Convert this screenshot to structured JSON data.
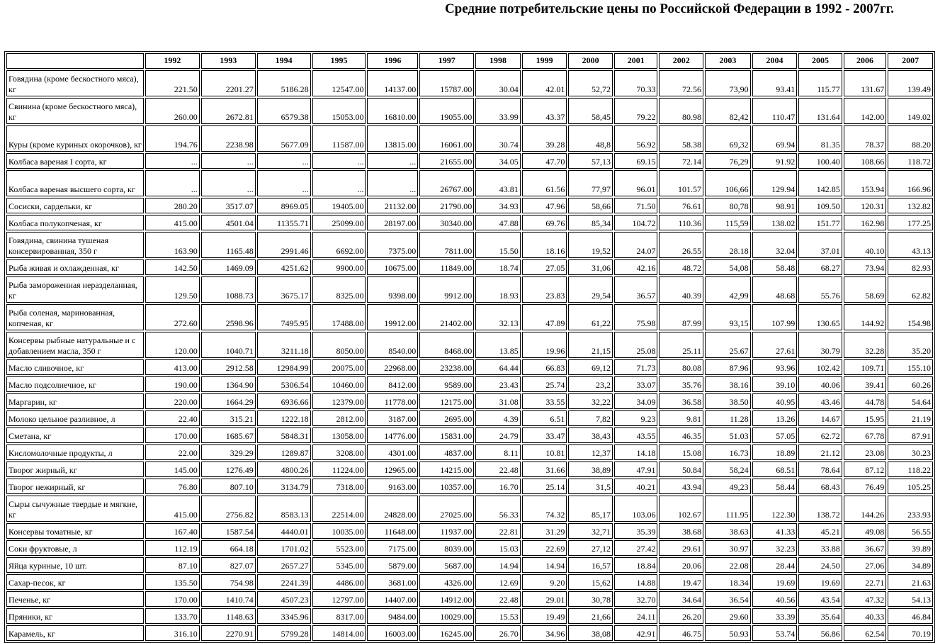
{
  "header": {
    "title": "Средние потребительские цены по Российской Федерации в 1992 - 2007гг."
  },
  "table": {
    "years": [
      "1992",
      "1993",
      "1994",
      "1995",
      "1996",
      "1997",
      "1998",
      "1999",
      "2000",
      "2001",
      "2002",
      "2003",
      "2004",
      "2005",
      "2006",
      "2007"
    ],
    "rows": [
      {
        "label": "Говядина (кроме бескостного мяса), кг",
        "cells": [
          "221.50",
          "2201.27",
          "5186.28",
          "12547.00",
          "14137.00",
          "15787.00",
          "30.04",
          "42.01",
          "52,72",
          "70.33",
          "72.56",
          "73,90",
          "93.41",
          "115.77",
          "131.67",
          "139.49"
        ]
      },
      {
        "label": "Свинина (кроме бескостного мяса), кг",
        "cells": [
          "260.00",
          "2672.81",
          "6579.38",
          "15053.00",
          "16810.00",
          "19055.00",
          "33.99",
          "43.37",
          "58,45",
          "79.22",
          "80.98",
          "82,42",
          "110.47",
          "131.64",
          "142.00",
          "149.02"
        ]
      },
      {
        "label": "Куры (кроме куриных окорочков), кг",
        "cells": [
          "194.76",
          "2238.98",
          "5677.09",
          "11587.00",
          "13815.00",
          "16061.00",
          "30.74",
          "39.28",
          "48,8",
          "56.92",
          "58.38",
          "69,32",
          "69.94",
          "81.35",
          "78.37",
          "88.20"
        ]
      },
      {
        "label": "Колбаса вареная I сорта, кг",
        "cells": [
          "...",
          "...",
          "...",
          "...",
          "...",
          "21655.00",
          "34.05",
          "47.70",
          "57,13",
          "69.15",
          "72.14",
          "76,29",
          "91.92",
          "100.40",
          "108.66",
          "118.72"
        ]
      },
      {
        "label": "Колбаса вареная высшего сорта, кг",
        "cells": [
          "...",
          "...",
          "...",
          "...",
          "...",
          "26767.00",
          "43.81",
          "61.56",
          "77,97",
          "96.01",
          "101.57",
          "106,66",
          "129.94",
          "142.85",
          "153.94",
          "166.96"
        ]
      },
      {
        "label": "Сосиски, сардельки, кг",
        "cells": [
          "280.20",
          "3517.07",
          "8969.05",
          "19405.00",
          "21132.00",
          "21790.00",
          "34.93",
          "47.96",
          "58,66",
          "71.50",
          "76.61",
          "80,78",
          "98.91",
          "109.50",
          "120.31",
          "132.82"
        ]
      },
      {
        "label": "Колбаса полукопченая, кг",
        "cells": [
          "415.00",
          "4501.04",
          "11355.71",
          "25099.00",
          "28197.00",
          "30340.00",
          "47.88",
          "69.76",
          "85,34",
          "104.72",
          "110.36",
          "115,59",
          "138.02",
          "151.77",
          "162.98",
          "177.25"
        ]
      },
      {
        "label": "Говядина, свинина тушеная консервированная, 350 г",
        "cells": [
          "163.90",
          "1165.48",
          "2991.46",
          "6692.00",
          "7375.00",
          "7811.00",
          "15.50",
          "18.16",
          "19,52",
          "24.07",
          "26.55",
          "28.18",
          "32.04",
          "37.01",
          "40.10",
          "43.13"
        ]
      },
      {
        "label": "Рыба живая и охлажденная, кг",
        "cells": [
          "142.50",
          "1469.09",
          "4251.62",
          "9900.00",
          "10675.00",
          "11849.00",
          "18.74",
          "27.05",
          "31,06",
          "42.16",
          "48.72",
          "54,08",
          "58.48",
          "68.27",
          "73.94",
          "82.93"
        ]
      },
      {
        "label": "Рыба замороженная неразделанная, кг",
        "cells": [
          "129.50",
          "1088.73",
          "3675.17",
          "8325.00",
          "9398.00",
          "9912.00",
          "18.93",
          "23.83",
          "29,54",
          "36.57",
          "40.39",
          "42,99",
          "48.68",
          "55.76",
          "58.69",
          "62.82"
        ]
      },
      {
        "label": "Рыба соленая, маринованная, копченая, кг",
        "cells": [
          "272.60",
          "2598.96",
          "7495.95",
          "17488.00",
          "19912.00",
          "21402.00",
          "32.13",
          "47.89",
          "61,22",
          "75.98",
          "87.99",
          "93,15",
          "107.99",
          "130.65",
          "144.92",
          "154.98"
        ]
      },
      {
        "label": "Консервы рыбные натуральные и с добавлением масла, 350 г",
        "cells": [
          "120.00",
          "1040.71",
          "3211.18",
          "8050.00",
          "8540.00",
          "8468.00",
          "13.85",
          "19.96",
          "21,15",
          "25.08",
          "25.11",
          "25.67",
          "27.61",
          "30.79",
          "32.28",
          "35.20"
        ]
      },
      {
        "label": "Масло сливочное, кг",
        "cells": [
          "413.00",
          "2912.58",
          "12984.99",
          "20075.00",
          "22968.00",
          "23238.00",
          "64.44",
          "66.83",
          "69,12",
          "71.73",
          "80.08",
          "87.96",
          "93.96",
          "102.42",
          "109.71",
          "155.10"
        ]
      },
      {
        "label": "Масло подсолнечное, кг",
        "cells": [
          "190.00",
          "1364.90",
          "5306.54",
          "10460.00",
          "8412.00",
          "9589.00",
          "23.43",
          "25.74",
          "23,2",
          "33.07",
          "35.76",
          "38.16",
          "39.10",
          "40.06",
          "39.41",
          "60.26"
        ]
      },
      {
        "label": "Маргарин, кг",
        "cells": [
          "220.00",
          "1664.29",
          "6936.66",
          "12379.00",
          "11778.00",
          "12175.00",
          "31.08",
          "33.55",
          "32,22",
          "34.09",
          "36.58",
          "38.50",
          "40.95",
          "43.46",
          "44.78",
          "54.64"
        ]
      },
      {
        "label": "Молоко цельное разливное, л",
        "cells": [
          "22.40",
          "315.21",
          "1222.18",
          "2812.00",
          "3187.00",
          "2695.00",
          "4.39",
          "6.51",
          "7,82",
          "9.23",
          "9.81",
          "11.28",
          "13.26",
          "14.67",
          "15.95",
          "21.19"
        ]
      },
      {
        "label": "Сметана, кг",
        "cells": [
          "170.00",
          "1685.67",
          "5848.31",
          "13058.00",
          "14776.00",
          "15831.00",
          "24.79",
          "33.47",
          "38,43",
          "43.55",
          "46.35",
          "51.03",
          "57.05",
          "62.72",
          "67.78",
          "87.91"
        ]
      },
      {
        "label": "Кисломолочные продукты, л",
        "cells": [
          "22.00",
          "329.29",
          "1289.87",
          "3208.00",
          "4301.00",
          "4837.00",
          "8.11",
          "10.81",
          "12,37",
          "14.18",
          "15.08",
          "16.73",
          "18.89",
          "21.12",
          "23.08",
          "30.23"
        ]
      },
      {
        "label": "Творог жирный, кг",
        "cells": [
          "145.00",
          "1276.49",
          "4800.26",
          "11224.00",
          "12965.00",
          "14215.00",
          "22.48",
          "31.66",
          "38,89",
          "47.91",
          "50.84",
          "58,24",
          "68.51",
          "78.64",
          "87.12",
          "118.22"
        ]
      },
      {
        "label": "Творог нежирный, кг",
        "cells": [
          "76.80",
          "807.10",
          "3134.79",
          "7318.00",
          "9163.00",
          "10357.00",
          "16.70",
          "25.14",
          "31,5",
          "40.21",
          "43.94",
          "49,23",
          "58.44",
          "68.43",
          "76.49",
          "105.25"
        ]
      },
      {
        "label": "Сыры сычужные твердые и мягкие, кг",
        "cells": [
          "415.00",
          "2756.82",
          "8583.13",
          "22514.00",
          "24828.00",
          "27025.00",
          "56.33",
          "74.32",
          "85,17",
          "103.06",
          "102.67",
          "111.95",
          "122.30",
          "138.72",
          "144.26",
          "233.93"
        ]
      },
      {
        "label": "Консервы томатные, кг",
        "cells": [
          "167.40",
          "1587.54",
          "4440.01",
          "10035.00",
          "11648.00",
          "11937.00",
          "22.81",
          "31.29",
          "32,71",
          "35.39",
          "38.68",
          "38.63",
          "41.33",
          "45.21",
          "49.08",
          "56.55"
        ]
      },
      {
        "label": "Соки фруктовые, л",
        "cells": [
          "112.19",
          "664.18",
          "1701.02",
          "5523.00",
          "7175.00",
          "8039.00",
          "15.03",
          "22.69",
          "27,12",
          "27.42",
          "29.61",
          "30.97",
          "32.23",
          "33.88",
          "36.67",
          "39.89"
        ]
      },
      {
        "label": "Яйца куриные, 10 шт.",
        "cells": [
          "87.10",
          "827.07",
          "2657.27",
          "5345.00",
          "5879.00",
          "5687.00",
          "14.94",
          "14.94",
          "16,57",
          "18.84",
          "20.06",
          "22.08",
          "28.44",
          "24.50",
          "27.06",
          "34.89"
        ]
      },
      {
        "label": "Сахар-песок, кг",
        "cells": [
          "135.50",
          "754.98",
          "2241.39",
          "4486.00",
          "3681.00",
          "4326.00",
          "12.69",
          "9.20",
          "15,62",
          "14.88",
          "19.47",
          "18.34",
          "19.69",
          "19.69",
          "22.71",
          "21.63"
        ]
      },
      {
        "label": "Печенье, кг",
        "cells": [
          "170.00",
          "1410.74",
          "4507.23",
          "12797.00",
          "14407.00",
          "14912.00",
          "22.48",
          "29.01",
          "30,78",
          "32.70",
          "34.64",
          "36.54",
          "40.56",
          "43.54",
          "47.32",
          "54.13"
        ]
      },
      {
        "label": "Пряники, кг",
        "cells": [
          "133.70",
          "1148.63",
          "3345.96",
          "8317.00",
          "9484.00",
          "10029.00",
          "15.53",
          "19.49",
          "21,66",
          "24.11",
          "26.20",
          "29.60",
          "33.39",
          "35.64",
          "40.33",
          "46.84"
        ]
      },
      {
        "label": "Карамель, кг",
        "cells": [
          "316.10",
          "2270.91",
          "5799.28",
          "14814.00",
          "16003.00",
          "16245.00",
          "26.70",
          "34.96",
          "38,08",
          "42.91",
          "46.75",
          "50.93",
          "53.74",
          "56.86",
          "62.54",
          "70.19"
        ]
      }
    ]
  }
}
